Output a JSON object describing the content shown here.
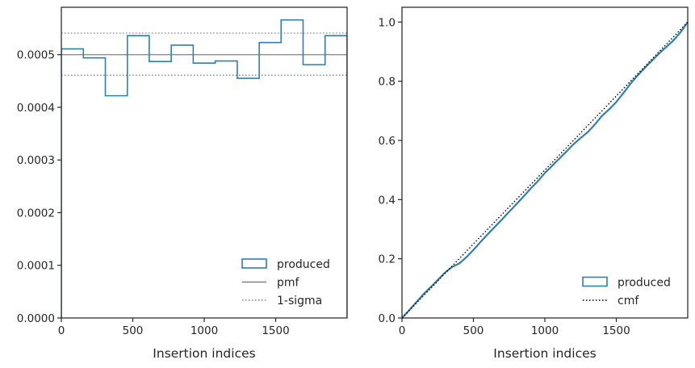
{
  "chart_data": [
    {
      "type": "histogram-step",
      "xlabel": "Insertion indices",
      "ylabel": "",
      "xlim": [
        0,
        2000
      ],
      "ylim": [
        0,
        0.00059
      ],
      "xticks": [
        0,
        500,
        1000,
        1500
      ],
      "xtick_labels": [
        "0",
        "500",
        "1000",
        "1500"
      ],
      "yticks": [
        0,
        0.0001,
        0.0002,
        0.0003,
        0.0004,
        0.0005
      ],
      "ytick_labels": [
        "0.0000",
        "0.0001",
        "0.0002",
        "0.0003",
        "0.0004",
        "0.0005"
      ],
      "grid": false,
      "legend_position": "lower-right",
      "bin_edges": [
        0,
        154,
        308,
        462,
        615,
        769,
        923,
        1077,
        1231,
        1385,
        1538,
        1692,
        1846,
        2000
      ],
      "series": [
        {
          "name": "produced",
          "style": "step",
          "color": "#2f7fb0",
          "values": [
            0.000511,
            0.000494,
            0.000422,
            0.000536,
            0.000487,
            0.000518,
            0.000484,
            0.000488,
            0.000455,
            0.000523,
            0.000566,
            0.000481,
            0.000536
          ]
        }
      ],
      "reference_lines": [
        {
          "name": "pmf",
          "style": "solid",
          "color": "#808080",
          "y": 0.0005
        },
        {
          "name": "1-sigma",
          "style": "dotted",
          "color": "#808080",
          "y": [
            0.000541,
            0.000461
          ]
        }
      ]
    },
    {
      "type": "line",
      "xlabel": "Insertion indices",
      "ylabel": "",
      "xlim": [
        0,
        2000
      ],
      "ylim": [
        0,
        1.05
      ],
      "xticks": [
        0,
        500,
        1000,
        1500
      ],
      "xtick_labels": [
        "0",
        "500",
        "1000",
        "1500"
      ],
      "yticks": [
        0,
        0.2,
        0.4,
        0.6,
        0.8,
        1.0
      ],
      "ytick_labels": [
        "0.0",
        "0.2",
        "0.4",
        "0.6",
        "0.8",
        "1.0"
      ],
      "grid": false,
      "legend_position": "lower-right",
      "series": [
        {
          "name": "produced",
          "style": "solid",
          "color": "#2f7fb0",
          "x": [
            0,
            50,
            100,
            150,
            200,
            250,
            300,
            350,
            400,
            450,
            500,
            550,
            600,
            650,
            700,
            750,
            800,
            850,
            900,
            950,
            1000,
            1050,
            1100,
            1150,
            1200,
            1250,
            1300,
            1350,
            1400,
            1450,
            1500,
            1550,
            1600,
            1650,
            1700,
            1750,
            1800,
            1850,
            1900,
            1950,
            2000
          ],
          "values": [
            0,
            0.026,
            0.053,
            0.08,
            0.104,
            0.128,
            0.153,
            0.172,
            0.184,
            0.205,
            0.23,
            0.257,
            0.283,
            0.308,
            0.333,
            0.359,
            0.384,
            0.41,
            0.437,
            0.462,
            0.49,
            0.514,
            0.538,
            0.562,
            0.587,
            0.608,
            0.628,
            0.654,
            0.683,
            0.705,
            0.73,
            0.76,
            0.792,
            0.82,
            0.845,
            0.87,
            0.894,
            0.916,
            0.938,
            0.966,
            1.0
          ]
        },
        {
          "name": "cmf",
          "style": "dotted",
          "color": "#000000",
          "x": [
            0,
            2000
          ],
          "values": [
            0,
            1.0
          ]
        }
      ]
    }
  ]
}
